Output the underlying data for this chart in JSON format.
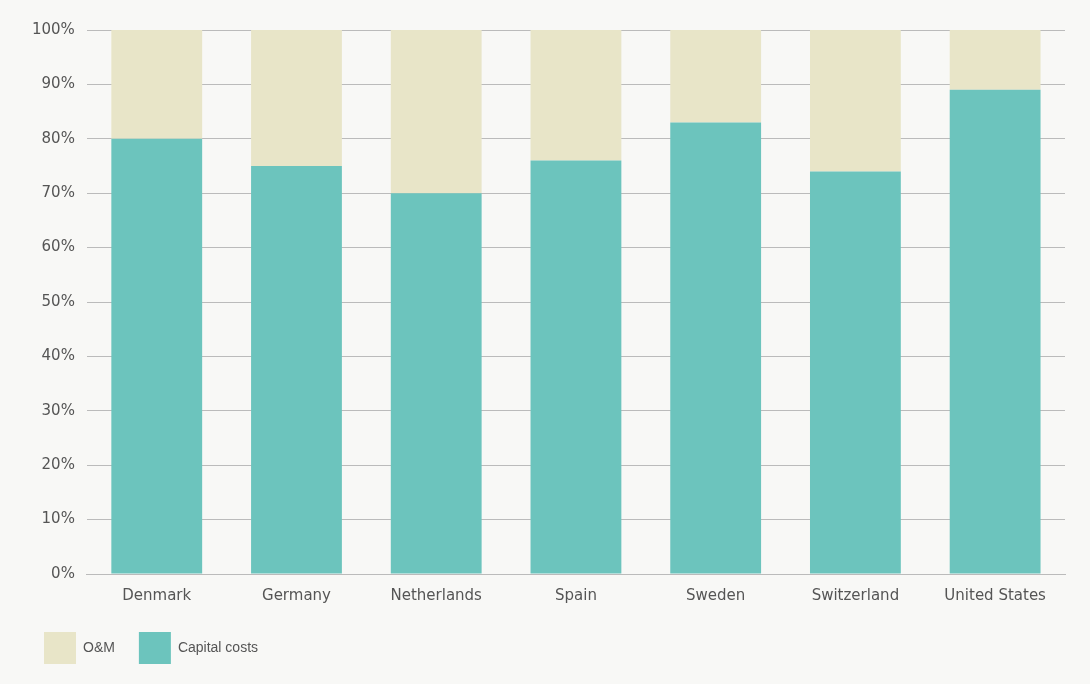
{
  "chart_data": {
    "type": "bar",
    "stacked": true,
    "categories": [
      "Denmark",
      "Germany",
      "Netherlands",
      "Spain",
      "Sweden",
      "Switzerland",
      "United States"
    ],
    "series": [
      {
        "name": "Capital costs",
        "color": "#6cc4bd",
        "values": [
          80,
          75,
          70,
          76,
          83,
          74,
          89
        ]
      },
      {
        "name": "O&M",
        "color": "#e8e5c8",
        "values": [
          20,
          25,
          30,
          24,
          17,
          26,
          11
        ]
      }
    ],
    "ylim": [
      0,
      100
    ],
    "yticks": [
      {
        "value": 0,
        "label": "0%"
      },
      {
        "value": 10,
        "label": "10%"
      },
      {
        "value": 20,
        "label": "20%"
      },
      {
        "value": 30,
        "label": "30%"
      },
      {
        "value": 40,
        "label": "40%"
      },
      {
        "value": 50,
        "label": "50%"
      },
      {
        "value": 60,
        "label": "60%"
      },
      {
        "value": 70,
        "label": "70%"
      },
      {
        "value": 80,
        "label": "80%"
      },
      {
        "value": 90,
        "label": "90%"
      },
      {
        "value": 100,
        "label": "100%"
      }
    ],
    "grid": "y",
    "legend": "bottom left"
  }
}
